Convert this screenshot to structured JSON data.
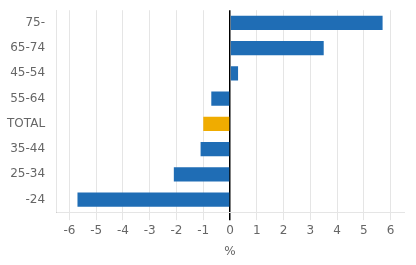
{
  "chart_data": {
    "type": "bar",
    "orientation": "horizontal",
    "categories": [
      "-24",
      "25-34",
      "35-44",
      "TOTAL",
      "55-64",
      "45-54",
      "65-74",
      "75-"
    ],
    "values": [
      -5.7,
      -2.1,
      -1.1,
      -1.0,
      -0.7,
      0.3,
      3.5,
      5.7
    ],
    "colors": [
      "#1f6db5",
      "#1f6db5",
      "#1f6db5",
      "#f0ac00",
      "#1f6db5",
      "#1f6db5",
      "#1f6db5",
      "#1f6db5"
    ],
    "xlabel": "%",
    "xlim": [
      -6.5,
      6.5
    ],
    "xticks": [
      -6,
      -5,
      -4,
      -3,
      -2,
      -1,
      0,
      1,
      2,
      3,
      4,
      5,
      6
    ],
    "grid": true
  }
}
